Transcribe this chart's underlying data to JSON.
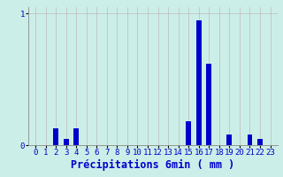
{
  "categories": [
    0,
    1,
    2,
    3,
    4,
    5,
    6,
    7,
    8,
    9,
    10,
    11,
    12,
    13,
    14,
    15,
    16,
    17,
    18,
    19,
    20,
    21,
    22,
    23
  ],
  "values": [
    0,
    0,
    0.13,
    0.05,
    0.13,
    0,
    0,
    0,
    0,
    0,
    0,
    0,
    0,
    0,
    0,
    0.18,
    0.95,
    0.62,
    0,
    0.08,
    0,
    0.08,
    0.05,
    0
  ],
  "bar_color": "#0000cc",
  "bg_color": "#cceee8",
  "grid_color": "#bbbbbb",
  "axis_color": "#888888",
  "text_color": "#0000cc",
  "xlabel": "Précipitations 6min ( mm )",
  "ylim": [
    0,
    1.05
  ],
  "ytick_label": "1",
  "ytick_val": 1.0,
  "tick_fontsize": 6.5,
  "label_fontsize": 8.5
}
